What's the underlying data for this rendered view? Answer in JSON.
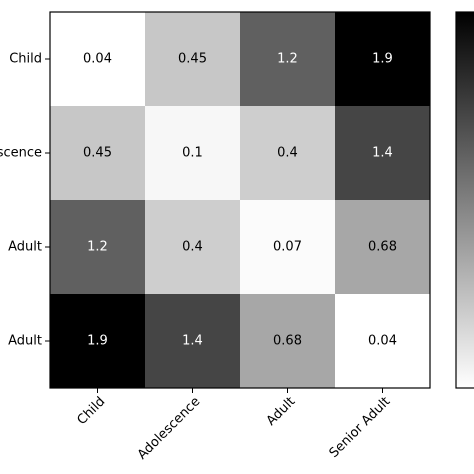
{
  "chart_data": {
    "type": "heatmap",
    "title": "",
    "xlabel": "",
    "ylabel": "",
    "x_categories": [
      "Child",
      "Adolescence",
      "Adult",
      "Senior Adult"
    ],
    "y_categories": [
      "Child",
      "Adolescence",
      "Adult",
      "Senior Adult"
    ],
    "y_visible_labels": [
      "Child",
      "scence",
      "Adult",
      "Adult"
    ],
    "x_tick_rotation_deg": 45,
    "value_labels": [
      [
        "0.04",
        "0.45",
        "1.2",
        "1.9"
      ],
      [
        "0.45",
        "0.1",
        "0.4",
        "1.4"
      ],
      [
        "1.2",
        "0.4",
        "0.07",
        "0.68"
      ],
      [
        "1.9",
        "1.4",
        "0.68",
        "0.04"
      ]
    ],
    "values": [
      [
        0.04,
        0.45,
        1.2,
        1.9
      ],
      [
        0.45,
        0.1,
        0.4,
        1.4
      ],
      [
        1.2,
        0.4,
        0.07,
        0.68
      ],
      [
        1.9,
        1.4,
        0.68,
        0.04
      ]
    ],
    "colormap": "gray_r",
    "vmin": 0.04,
    "vmax": 1.9,
    "colorbar": true
  }
}
